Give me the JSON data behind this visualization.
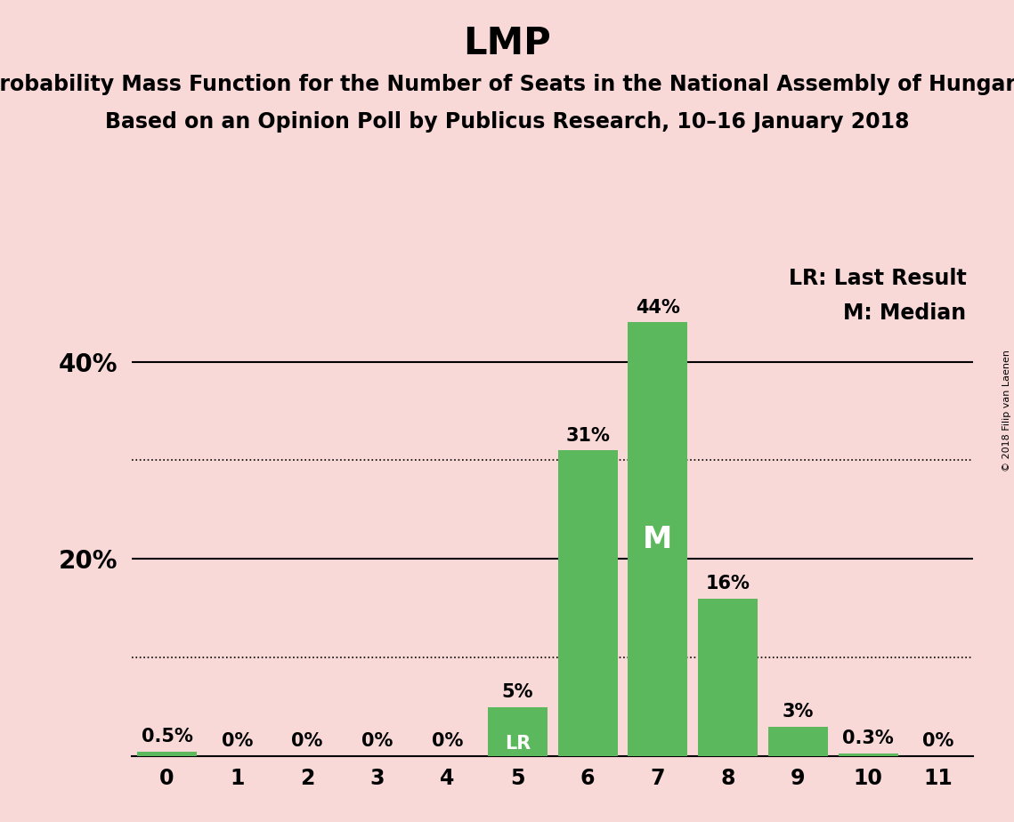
{
  "title": "LMP",
  "subtitle1": "Probability Mass Function for the Number of Seats in the National Assembly of Hungary",
  "subtitle2": "Based on an Opinion Poll by Publicus Research, 10–16 January 2018",
  "categories": [
    0,
    1,
    2,
    3,
    4,
    5,
    6,
    7,
    8,
    9,
    10,
    11
  ],
  "values": [
    0.5,
    0,
    0,
    0,
    0,
    5,
    31,
    44,
    16,
    3,
    0.3,
    0
  ],
  "bar_color": "#5cb85c",
  "background_color": "#f9d8d8",
  "ylim": [
    0,
    50
  ],
  "xlim": [
    -0.5,
    11.5
  ],
  "bar_labels": [
    "0.5%",
    "0%",
    "0%",
    "0%",
    "0%",
    "5%",
    "31%",
    "44%",
    "16%",
    "3%",
    "0.3%",
    "0%"
  ],
  "lr_bar_index": 5,
  "median_bar_index": 7,
  "lr_label": "LR",
  "median_label": "M",
  "legend_text1": "LR: Last Result",
  "legend_text2": "M: Median",
  "copyright_text": "© 2018 Filip van Laenen",
  "dotted_gridlines": [
    10,
    30
  ],
  "solid_gridlines": [
    20,
    40
  ],
  "title_fontsize": 30,
  "subtitle_fontsize": 17,
  "bar_label_fontsize": 15,
  "axis_tick_fontsize": 17,
  "ytick_label_fontsize": 20,
  "legend_fontsize": 17,
  "median_label_fontsize": 24
}
